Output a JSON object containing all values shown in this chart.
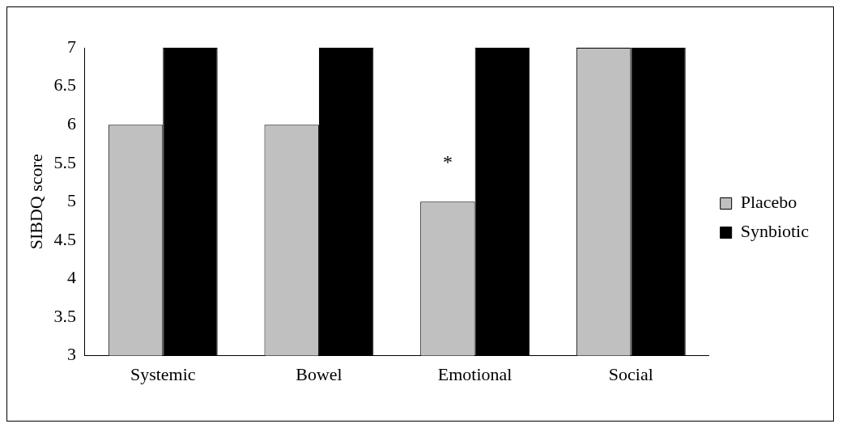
{
  "chart_data": {
    "type": "bar",
    "ylabel": "SIBDQ score",
    "categories": [
      "Systemic",
      "Bowel",
      "Emotional",
      "Social"
    ],
    "series": [
      {
        "name": "Placebo",
        "color": "#c0c0c0",
        "values": [
          6,
          6,
          5,
          7
        ]
      },
      {
        "name": "Synbiotic",
        "color": "#000000",
        "values": [
          7,
          7,
          7,
          7
        ]
      }
    ],
    "ylim": [
      3,
      7
    ],
    "yticks": [
      3,
      3.5,
      4,
      4.5,
      5,
      5.5,
      6,
      6.5,
      7
    ],
    "grid": false,
    "legend": "right",
    "annotations": [
      {
        "text": "*",
        "x": "Emotional",
        "y": 5.5
      }
    ]
  }
}
